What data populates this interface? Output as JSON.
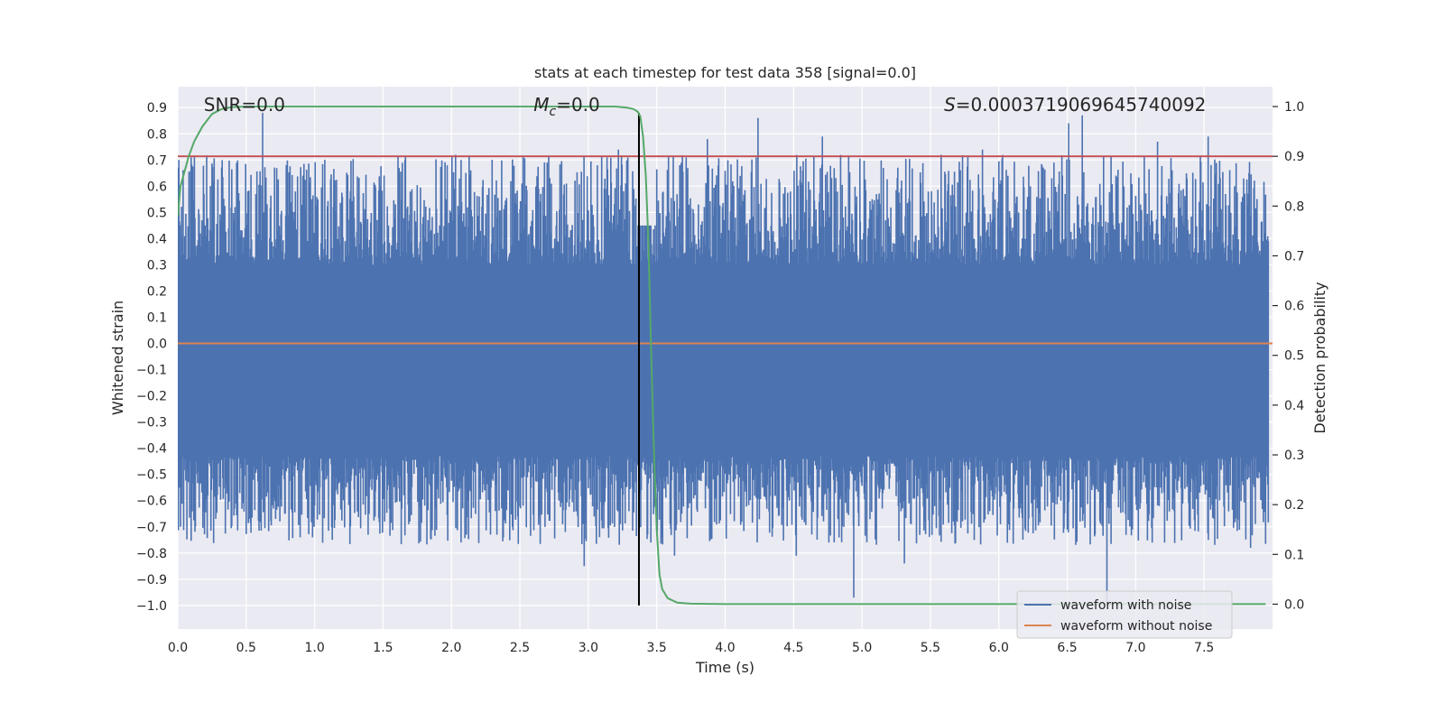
{
  "chart_data": {
    "type": "line",
    "title": "stats at each timestep for test data 358 [signal=0.0]",
    "xlabel": "Time (s)",
    "ylabel": "Whitened strain",
    "ylabel_right": "Detection probability",
    "xlim": [
      0.0,
      8.0
    ],
    "ylim": [
      -1.09,
      0.98
    ],
    "ylim_right": [
      -0.05,
      1.04
    ],
    "x_ticks": [
      0.0,
      0.5,
      1.0,
      1.5,
      2.0,
      2.5,
      3.0,
      3.5,
      4.0,
      4.5,
      5.0,
      5.5,
      6.0,
      6.5,
      7.0,
      7.5
    ],
    "x_tick_labels": [
      "0.0",
      "0.5",
      "1.0",
      "1.5",
      "2.0",
      "2.5",
      "3.0",
      "3.5",
      "4.0",
      "4.5",
      "5.0",
      "5.5",
      "6.0",
      "6.5",
      "7.0",
      "7.5"
    ],
    "y_ticks": [
      0.9,
      0.8,
      0.7,
      0.6,
      0.5,
      0.4,
      0.3,
      0.2,
      0.1,
      0.0,
      -0.1,
      -0.2,
      -0.3,
      -0.4,
      -0.5,
      -0.6,
      -0.7,
      -0.8,
      -0.9,
      -1.0
    ],
    "y_tick_labels": [
      "0.9",
      "0.8",
      "0.7",
      "0.6",
      "0.5",
      "0.4",
      "0.3",
      "0.2",
      "0.1",
      "0.0",
      "−0.1",
      "−0.2",
      "−0.3",
      "−0.4",
      "−0.5",
      "−0.6",
      "−0.7",
      "−0.8",
      "−0.9",
      "−1.0"
    ],
    "y_right_ticks": [
      1.0,
      0.9,
      0.8,
      0.7,
      0.6,
      0.5,
      0.4,
      0.3,
      0.2,
      0.1,
      0.0
    ],
    "y_right_tick_labels": [
      "1.0",
      "0.9",
      "0.8",
      "0.7",
      "0.6",
      "0.5",
      "0.4",
      "0.3",
      "0.2",
      "0.1",
      "0.0"
    ],
    "annotations": {
      "snr": "SNR=0.0",
      "mc_symbol": "M",
      "mc_subscript": "c",
      "mc_value": "=0.0",
      "s_symbol": "S",
      "s_value": "=0.0003719069645740092"
    },
    "threshold_right": 0.9,
    "vline_time": 3.37,
    "vline_ymin": -1.0,
    "vline_ymax": 0.88,
    "noise": {
      "sample_rate": 256,
      "core_min": -0.43,
      "core_max": 0.3,
      "spike_peaks": [
        {
          "t": 0.62,
          "v": 0.88
        },
        {
          "t": 2.03,
          "v": 0.72
        },
        {
          "t": 3.22,
          "v": 0.74
        },
        {
          "t": 3.87,
          "v": 0.78
        },
        {
          "t": 4.24,
          "v": 0.86
        },
        {
          "t": 4.71,
          "v": 0.79
        },
        {
          "t": 5.88,
          "v": 0.74
        },
        {
          "t": 6.51,
          "v": 0.84
        },
        {
          "t": 6.61,
          "v": 0.87
        },
        {
          "t": 7.16,
          "v": 0.77
        },
        {
          "t": 7.53,
          "v": 0.79
        },
        {
          "t": 2.97,
          "v": -0.85
        },
        {
          "t": 4.94,
          "v": -0.97
        },
        {
          "t": 6.79,
          "v": -0.99
        },
        {
          "t": 7.84,
          "v": -0.78
        },
        {
          "t": 3.63,
          "v": -0.81
        },
        {
          "t": 4.52,
          "v": -0.81
        },
        {
          "t": 5.31,
          "v": -0.84
        }
      ]
    },
    "series": [
      {
        "name": "waveform with noise",
        "color": "#4c72b0",
        "axis": "left"
      },
      {
        "name": "waveform without noise",
        "color": "#dd8452",
        "axis": "left",
        "constant": 0.0
      },
      {
        "name": "detection probability",
        "color": "#55a868",
        "axis": "right",
        "in_legend": false,
        "t": [
          0.0,
          0.02,
          0.05,
          0.08,
          0.12,
          0.18,
          0.25,
          0.32,
          0.4,
          0.5,
          0.8,
          1.5,
          2.0,
          2.5,
          3.0,
          3.2,
          3.28,
          3.33,
          3.36,
          3.38,
          3.4,
          3.42,
          3.44,
          3.46,
          3.48,
          3.5,
          3.52,
          3.54,
          3.58,
          3.65,
          3.75,
          4.0,
          5.0,
          6.0,
          7.0,
          7.95
        ],
        "p": [
          0.78,
          0.84,
          0.87,
          0.9,
          0.93,
          0.96,
          0.985,
          0.995,
          0.999,
          1.0,
          1.0,
          1.0,
          1.0,
          1.0,
          1.0,
          1.0,
          0.998,
          0.995,
          0.99,
          0.98,
          0.94,
          0.86,
          0.72,
          0.5,
          0.3,
          0.15,
          0.06,
          0.03,
          0.012,
          0.003,
          0.001,
          0.0,
          0.0,
          0.0,
          0.0,
          0.0
        ]
      }
    ],
    "colors": {
      "background": "#eaeaf2",
      "grid": "#ffffff",
      "threshold": "#c44e52",
      "vline": "#000000",
      "text": "#262626"
    },
    "grid": true,
    "legend_position": "lower-right"
  }
}
